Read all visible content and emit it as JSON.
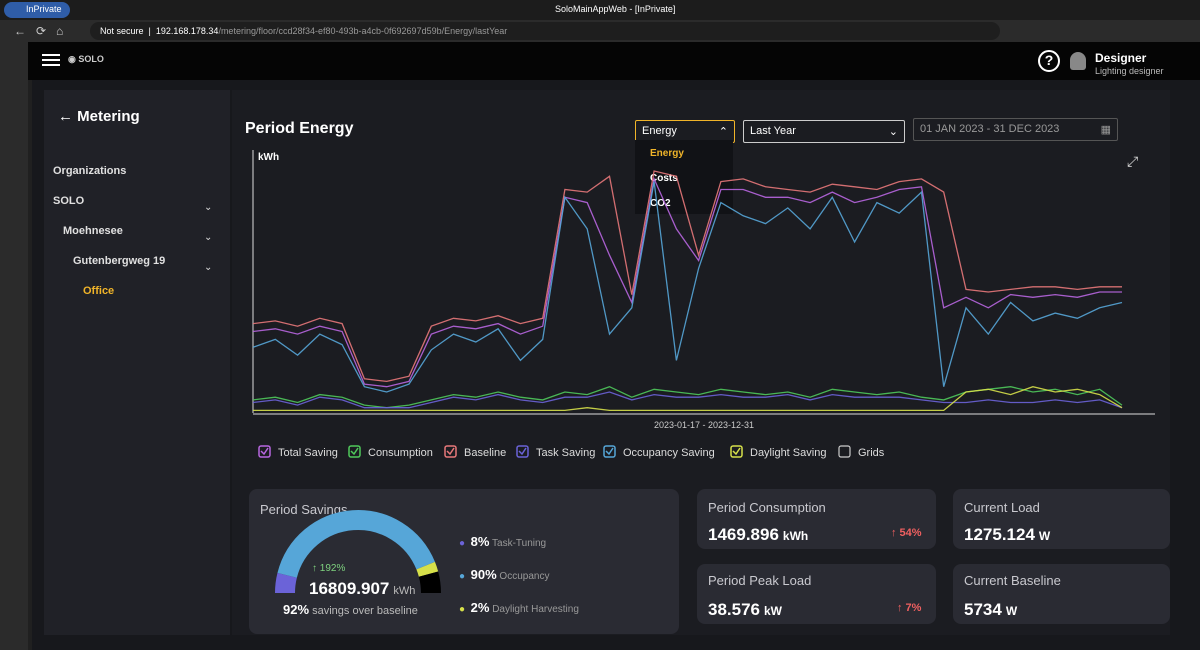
{
  "browser": {
    "badge": "InPrivate",
    "tab_title": "SoloMainAppWeb - [InPrivate]",
    "security": "Not secure",
    "url_host": "192.168.178.34",
    "url_path": "/metering/floor/ccd28f34-ef80-493b-a4cb-0f692697d59b/Energy/lastYear"
  },
  "header": {
    "user_name": "Designer",
    "user_role": "Lighting designer"
  },
  "sidebar": {
    "title": "Metering",
    "items": [
      "Organizations",
      "SOLO",
      "Moehnesee",
      "Gutenbergweg 19",
      "Office"
    ]
  },
  "toolbar": {
    "title": "Period Energy",
    "metric": "Energy",
    "metric_options": [
      "Energy",
      "Costs",
      "CO2"
    ],
    "period": "Last Year",
    "date_range": "01 JAN 2023 - 31 DEC 2023"
  },
  "chart_data": {
    "type": "line",
    "y_label": "kWh",
    "x_label": "2023-01-17 - 2023-12-31",
    "ylim": [
      0,
      100
    ],
    "grid": false,
    "grid_label": "Grids",
    "series": [
      {
        "name": "Total Saving",
        "color": "#b866e0",
        "values": [
          31,
          32,
          30,
          33,
          31,
          11,
          10,
          12,
          30,
          33,
          32,
          34,
          30,
          33,
          82,
          80,
          60,
          42,
          89,
          70,
          58,
          85,
          85,
          82,
          82,
          80,
          84,
          80,
          82,
          85,
          86,
          40,
          44,
          40,
          45,
          44,
          45,
          44,
          46,
          46
        ]
      },
      {
        "name": "Consumption",
        "color": "#4fc95b",
        "values": [
          5,
          6,
          4,
          7,
          6,
          3,
          2,
          3,
          5,
          7,
          6,
          8,
          6,
          5,
          8,
          7,
          10,
          6,
          9,
          8,
          7,
          9,
          8,
          7,
          8,
          6,
          9,
          8,
          7,
          8,
          6,
          5,
          8,
          9,
          10,
          8,
          9,
          7,
          9,
          3
        ]
      },
      {
        "name": "Baseline",
        "color": "#e8787a",
        "values": [
          34,
          35,
          33,
          36,
          34,
          13,
          12,
          14,
          33,
          36,
          35,
          37,
          34,
          36,
          85,
          84,
          90,
          45,
          92,
          90,
          60,
          88,
          89,
          86,
          85,
          84,
          87,
          86,
          85,
          88,
          89,
          84,
          47,
          46,
          47,
          48,
          48,
          47,
          48,
          48
        ]
      },
      {
        "name": "Task Saving",
        "color": "#6b63d8",
        "values": [
          4,
          5,
          3,
          6,
          5,
          2,
          2,
          2,
          4,
          6,
          5,
          7,
          5,
          4,
          6,
          6,
          8,
          5,
          7,
          6,
          6,
          7,
          6,
          6,
          7,
          5,
          7,
          6,
          6,
          6,
          5,
          4,
          4,
          5,
          4,
          4,
          5,
          4,
          5,
          2
        ]
      },
      {
        "name": "Occupancy Saving",
        "color": "#56a6d8",
        "values": [
          25,
          28,
          22,
          30,
          26,
          10,
          8,
          11,
          24,
          30,
          27,
          32,
          20,
          28,
          82,
          70,
          30,
          40,
          88,
          20,
          55,
          80,
          75,
          72,
          78,
          70,
          82,
          65,
          80,
          76,
          84,
          10,
          40,
          30,
          42,
          35,
          38,
          36,
          40,
          42
        ]
      },
      {
        "name": "Daylight Saving",
        "color": "#d6e04a",
        "values": [
          1,
          1,
          1,
          1,
          1,
          1,
          1,
          1,
          1,
          1,
          1,
          1,
          1,
          1,
          1,
          2,
          1,
          1,
          1,
          1,
          1,
          1,
          1,
          1,
          1,
          1,
          1,
          1,
          1,
          1,
          1,
          1,
          8,
          9,
          7,
          10,
          8,
          9,
          7,
          2
        ]
      }
    ]
  },
  "savings": {
    "title": "Period Savings",
    "change": "↑ 192%",
    "total": "16809.907",
    "unit": "kWh",
    "percent": "92%",
    "caption": "savings over baseline",
    "breakdown": [
      {
        "value": "8%",
        "label": "Task-Tuning"
      },
      {
        "value": "90%",
        "label": "Occupancy"
      },
      {
        "value": "2%",
        "label": "Daylight Harvesting"
      }
    ]
  },
  "cards": [
    {
      "title": "Period Consumption",
      "value": "1469.896",
      "unit": "kWh",
      "change": "↑ 54%"
    },
    {
      "title": "Current Load",
      "value": "1275.124",
      "unit": "W"
    },
    {
      "title": "Period Peak Load",
      "value": "38.576",
      "unit": "kW",
      "change": "↑ 7%"
    },
    {
      "title": "Current Baseline",
      "value": "5734",
      "unit": "W"
    }
  ]
}
